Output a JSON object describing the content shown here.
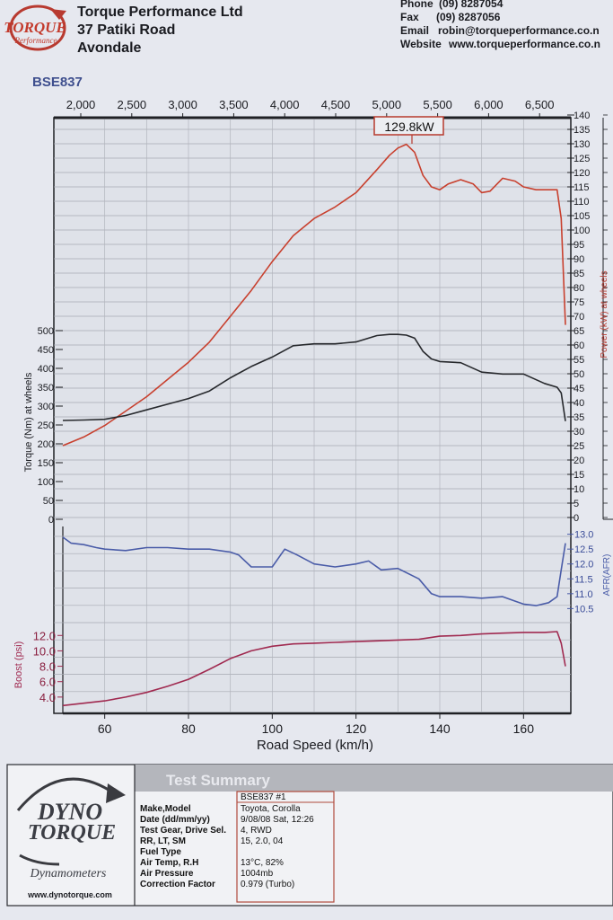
{
  "company": {
    "name": "Torque Performance Ltd",
    "address1": "37 Patiki Road",
    "address2": "Avondale",
    "logo_text_1": "TORQUE",
    "logo_text_2": "Performance"
  },
  "contact": {
    "phone_label": "Phone",
    "phone": "(09) 8287054",
    "fax_label": "Fax",
    "fax": "(09) 8287056",
    "email_label": "Email",
    "email": "robin@torqueperformance.co.n",
    "website_label": "Website",
    "website": "www.torqueperformance.co.n"
  },
  "vehicle_id": "BSE837",
  "peak_label": "129.8kW",
  "axes": {
    "left_main": "Torque (Nm) at wheels",
    "right_main": "Power (kW) at wheels",
    "right_afr": "AFR(AFR)",
    "boost": "Boost (psi)",
    "x_bottom": "Road Speed (km/h)"
  },
  "chart_data": [
    {
      "type": "line",
      "xlabel": "Road Speed (km/h)",
      "x_top_label": "",
      "xlim": [
        50,
        170
      ],
      "x_ticks_bottom": [
        "60",
        "80",
        "100",
        "120",
        "140",
        "160"
      ],
      "x_ticks_top": [
        "2,000",
        "2,500",
        "3,000",
        "3,500",
        "4,000",
        "4,500",
        "5,000",
        "5,500",
        "6,000",
        "6,500"
      ],
      "power_ticks": [
        "140",
        "135",
        "130",
        "125",
        "120",
        "115",
        "110",
        "105",
        "100",
        "95",
        "90",
        "85",
        "80",
        "75",
        "70",
        "65",
        "60",
        "55",
        "50",
        "45",
        "40",
        "35",
        "30",
        "25",
        "20",
        "15",
        "10",
        "5",
        "0"
      ],
      "torque_ticks": [
        "500",
        "450",
        "400",
        "350",
        "300",
        "250",
        "200",
        "150",
        "100",
        "50",
        "0"
      ],
      "series": [
        {
          "name": "Power (kW) at wheels",
          "color": "#c8402e",
          "axis": "right",
          "ylim": [
            0,
            140
          ],
          "x": [
            50,
            55,
            60,
            65,
            70,
            75,
            80,
            85,
            90,
            95,
            100,
            105,
            110,
            115,
            120,
            125,
            128,
            130,
            132,
            134,
            136,
            138,
            140,
            142,
            145,
            148,
            150,
            152,
            155,
            158,
            160,
            163,
            166,
            168,
            169,
            170
          ],
          "y": [
            25,
            28,
            32,
            37,
            42,
            48,
            54,
            61,
            70,
            79,
            89,
            98,
            104,
            108,
            113,
            121,
            126,
            128.5,
            129.8,
            127,
            119,
            115,
            114,
            116,
            117.5,
            116,
            113,
            113.5,
            118,
            117,
            115,
            114,
            114,
            114,
            104,
            67
          ]
        },
        {
          "name": "Torque (Nm) at wheels",
          "color": "#26282c",
          "axis": "left",
          "ylim": [
            0,
            500
          ],
          "x": [
            50,
            55,
            60,
            65,
            70,
            75,
            80,
            85,
            90,
            95,
            100,
            105,
            110,
            115,
            120,
            125,
            128,
            130,
            132,
            134,
            136,
            138,
            140,
            145,
            150,
            155,
            160,
            165,
            168,
            169,
            170
          ],
          "y": [
            262,
            263,
            265,
            275,
            290,
            305,
            320,
            340,
            375,
            405,
            430,
            460,
            465,
            465,
            470,
            487,
            490,
            490,
            488,
            480,
            445,
            425,
            418,
            415,
            390,
            385,
            385,
            360,
            350,
            335,
            260
          ]
        },
        {
          "name": "AFR",
          "color": "#4a5ca8",
          "axis": "afr",
          "ylim": [
            10.3,
            13.2
          ],
          "x": [
            50,
            52,
            55,
            58,
            60,
            65,
            70,
            75,
            80,
            85,
            90,
            92,
            95,
            100,
            103,
            106,
            110,
            115,
            120,
            123,
            126,
            130,
            135,
            138,
            140,
            145,
            150,
            155,
            158,
            160,
            163,
            166,
            168,
            169,
            170
          ],
          "y": [
            12.9,
            12.7,
            12.65,
            12.55,
            12.5,
            12.45,
            12.55,
            12.55,
            12.5,
            12.5,
            12.4,
            12.3,
            11.9,
            11.9,
            12.5,
            12.3,
            12.0,
            11.9,
            12.0,
            12.1,
            11.8,
            11.85,
            11.5,
            11.0,
            10.9,
            10.9,
            10.85,
            10.9,
            10.75,
            10.65,
            10.6,
            10.7,
            10.9,
            11.8,
            12.7
          ]
        },
        {
          "name": "Boost (psi)",
          "color": "#a02a50",
          "axis": "boost",
          "ylim": [
            2.7,
            13.2
          ],
          "x": [
            50,
            55,
            60,
            65,
            70,
            75,
            80,
            85,
            90,
            95,
            100,
            105,
            110,
            115,
            120,
            125,
            130,
            135,
            140,
            145,
            150,
            155,
            160,
            165,
            168,
            169,
            170
          ],
          "y": [
            2.9,
            3.2,
            3.5,
            4.0,
            4.6,
            5.4,
            6.3,
            7.6,
            9.0,
            10.0,
            10.6,
            10.9,
            11.0,
            11.1,
            11.2,
            11.3,
            11.4,
            11.5,
            11.9,
            12.0,
            12.2,
            12.3,
            12.4,
            12.4,
            12.5,
            11.0,
            8.0
          ]
        }
      ],
      "afr_ticks": [
        "13.0",
        "12.5",
        "12.0",
        "11.5",
        "11.0",
        "10.5"
      ],
      "boost_ticks": [
        "12.0",
        "10.0",
        "8.0",
        "6.0",
        "4.0"
      ],
      "grid": true
    }
  ],
  "summary": {
    "title": "Test Summary",
    "logo_line1": "DYNO",
    "logo_line2": "TORQUE",
    "logo_line3": "Dynamometers",
    "website": "www.dynotorque.com",
    "header_value": "BSE837   #1",
    "rows": [
      {
        "key": "Make,Model",
        "value": "Toyota, Corolla"
      },
      {
        "key": "Date (dd/mm/yy)",
        "value": "9/08/08 Sat, 12:26"
      },
      {
        "key": "Test Gear, Drive Sel.",
        "value": "4, RWD"
      },
      {
        "key": "RR, LT, SM",
        "value": "15,     2.0,     04"
      },
      {
        "key": "Fuel Type",
        "value": ""
      },
      {
        "key": "Air Temp, R.H",
        "value": "13°C,       82%"
      },
      {
        "key": "Air Pressure",
        "value": "1004mb"
      },
      {
        "key": "Correction Factor",
        "value": "0.979 (Turbo)"
      }
    ]
  }
}
